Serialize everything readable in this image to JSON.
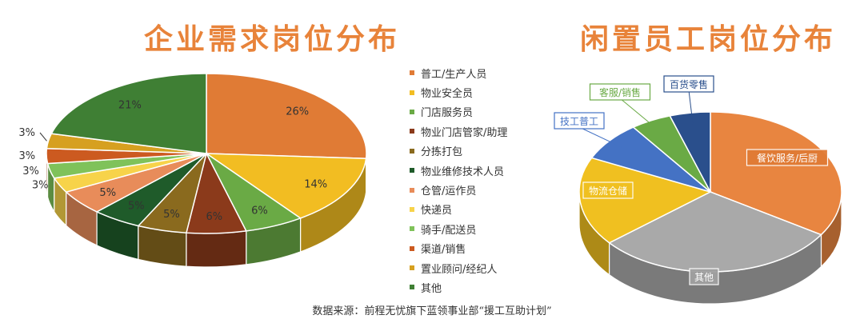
{
  "chart_data": [
    {
      "type": "pie",
      "title": "企业需求岗位分布",
      "categories": [
        "普工/生产人员",
        "物业安全员",
        "门店服务员",
        "物业门店管家/助理",
        "分拣打包",
        "物业维修技术人员",
        "仓管/运作员",
        "快递员",
        "骑手/配送员",
        "渠道/销售",
        "置业顾问/经纪人",
        "其他"
      ],
      "values": [
        26,
        14,
        6,
        6,
        5,
        5,
        5,
        3,
        3,
        3,
        3,
        21
      ],
      "labels": [
        "26%",
        "14%",
        "6%",
        "6%",
        "5%",
        "5%",
        "5%",
        "3%",
        "3%",
        "3%",
        "3%",
        "21%"
      ],
      "colors": [
        "#e07b35",
        "#f2bd22",
        "#6aaa45",
        "#8b3a1b",
        "#8a6a1e",
        "#1f5b2a",
        "#e88c5a",
        "#f7d34a",
        "#7fc25a",
        "#cc5a20",
        "#d6a020",
        "#3f7f34"
      ],
      "legend": "right"
    },
    {
      "type": "pie",
      "title": "闲置员工岗位分布",
      "categories": [
        "餐饮服务/后厨",
        "其他",
        "物流仓储",
        "技工普工",
        "客服/销售",
        "百货零售"
      ],
      "values": [
        34,
        30,
        18,
        8,
        5,
        5
      ],
      "colors": [
        "#e88540",
        "#a9a9a9",
        "#f0c020",
        "#4472c4",
        "#6aaa45",
        "#2a4f8c"
      ],
      "legend": "none"
    }
  ],
  "source": "数据来源：前程无忧旗下蓝领事业部“援工互助计划”"
}
